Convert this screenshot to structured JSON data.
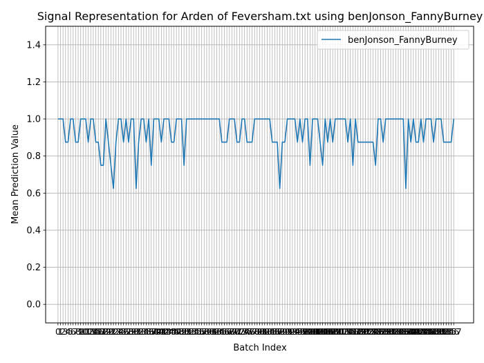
{
  "chart_data": {
    "type": "line",
    "title": "Signal Representation for Arden of Feversham.txt using benJonson_FannyBurney",
    "xlabel": "Batch Index",
    "ylabel": "Mean Prediction Value",
    "ylim": [
      -0.1,
      1.5
    ],
    "xlim": [
      -4.9,
      164.9
    ],
    "yticks": [
      0.0,
      0.2,
      0.4,
      0.6,
      0.8,
      1.0,
      1.2,
      1.4
    ],
    "grid": true,
    "legend": "top-right",
    "series": [
      {
        "name": "benJonson_FannyBurney",
        "color": "#1f77b4",
        "values": [
          1.0,
          1.0,
          1.0,
          0.875,
          0.875,
          1.0,
          1.0,
          0.875,
          0.875,
          1.0,
          1.0,
          1.0,
          0.875,
          1.0,
          1.0,
          0.875,
          0.875,
          0.75,
          0.75,
          1.0,
          0.875,
          0.75,
          0.625,
          0.875,
          1.0,
          1.0,
          0.875,
          1.0,
          0.875,
          1.0,
          1.0,
          0.625,
          0.875,
          1.0,
          1.0,
          0.875,
          1.0,
          0.75,
          1.0,
          1.0,
          1.0,
          0.875,
          1.0,
          1.0,
          1.0,
          0.875,
          0.875,
          1.0,
          1.0,
          1.0,
          0.75,
          1.0,
          1.0,
          1.0,
          1.0,
          1.0,
          1.0,
          1.0,
          1.0,
          1.0,
          1.0,
          1.0,
          1.0,
          1.0,
          1.0,
          0.875,
          0.875,
          0.875,
          1.0,
          1.0,
          1.0,
          0.875,
          0.875,
          1.0,
          1.0,
          0.875,
          0.875,
          0.875,
          1.0,
          1.0,
          1.0,
          1.0,
          1.0,
          1.0,
          1.0,
          0.875,
          0.875,
          0.875,
          0.625,
          0.875,
          0.875,
          1.0,
          1.0,
          1.0,
          1.0,
          0.875,
          1.0,
          0.875,
          1.0,
          1.0,
          0.75,
          1.0,
          1.0,
          1.0,
          0.875,
          0.75,
          1.0,
          0.875,
          1.0,
          0.875,
          1.0,
          1.0,
          1.0,
          1.0,
          1.0,
          0.875,
          1.0,
          0.75,
          1.0,
          0.875,
          0.875,
          0.875,
          0.875,
          0.875,
          0.875,
          0.875,
          0.75,
          1.0,
          1.0,
          0.875,
          1.0,
          1.0,
          1.0,
          1.0,
          1.0,
          1.0,
          1.0,
          1.0,
          0.625,
          1.0,
          0.875,
          1.0,
          0.875,
          0.875,
          1.0,
          0.875,
          1.0,
          1.0,
          1.0,
          0.875,
          1.0,
          1.0,
          1.0,
          0.875,
          0.875,
          0.875,
          0.875,
          1.0
        ]
      }
    ]
  }
}
